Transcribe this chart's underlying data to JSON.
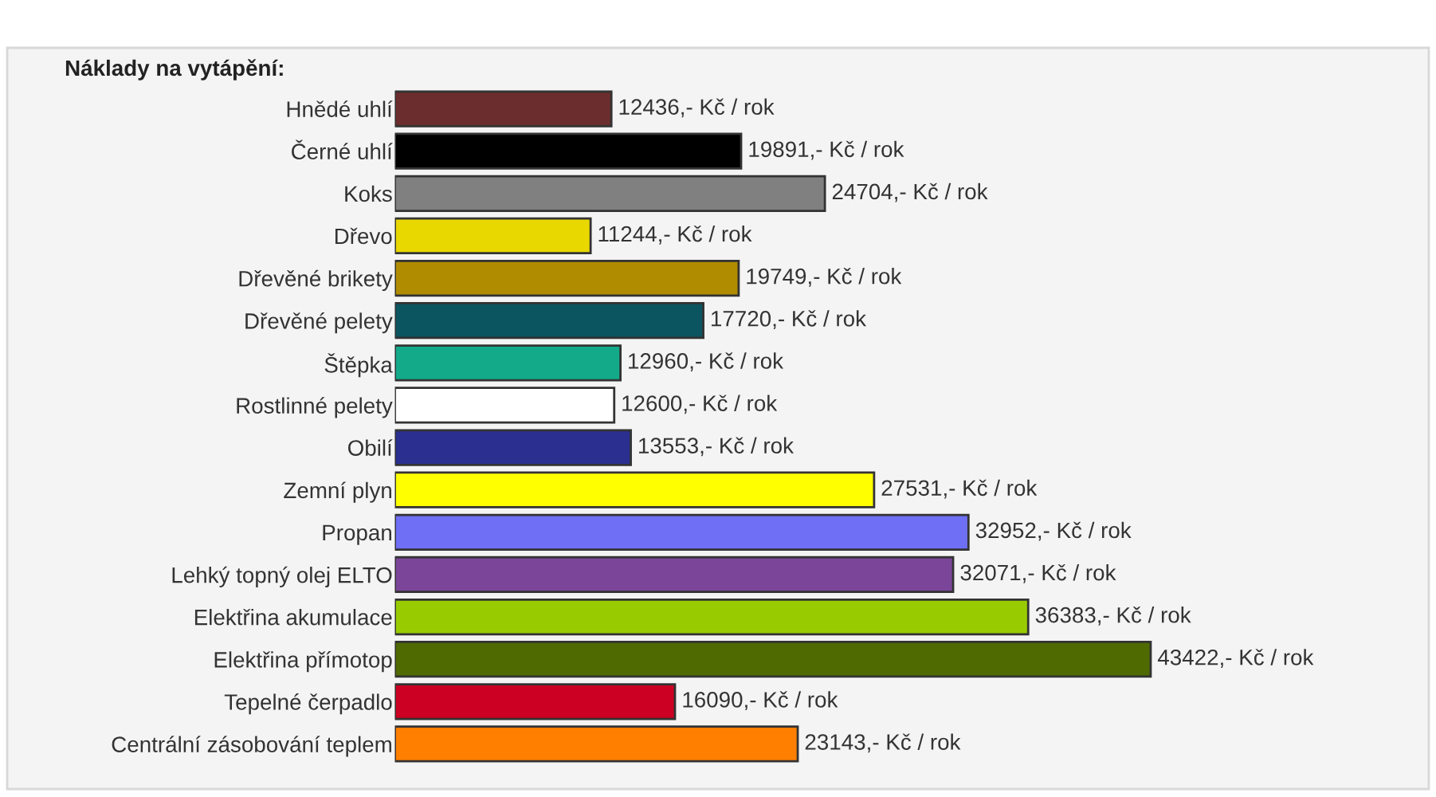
{
  "chart_data": {
    "type": "bar",
    "orientation": "horizontal",
    "title": "Náklady na vytápění:",
    "categories": [
      "Hnědé uhlí",
      "Černé uhlí",
      "Koks",
      "Dřevo",
      "Dřevěné brikety",
      "Dřevěné pelety",
      "Štěpka",
      "Rostlinné pelety",
      "Obilí",
      "Zemní plyn",
      "Propan",
      "Lehký topný olej ELTO",
      "Elektřina akumulace",
      "Elektřina přímotop",
      "Tepelné čerpadlo",
      "Centrální zásobování teplem"
    ],
    "values": [
      12436,
      19891,
      24704,
      11244,
      19749,
      17720,
      12960,
      12600,
      13553,
      27531,
      32952,
      32071,
      36383,
      43422,
      16090,
      23143
    ],
    "colors": [
      "#6b2d2d",
      "#000000",
      "#808080",
      "#e8d800",
      "#b08c00",
      "#0b5561",
      "#13aa8a",
      "#ffffff",
      "#2b2f8f",
      "#ffff00",
      "#6f6ff5",
      "#7b4699",
      "#99cc00",
      "#4f6a00",
      "#cc0022",
      "#ff7f00"
    ],
    "value_labels": [
      "12436,- Kč / rok",
      "19891,- Kč / rok",
      "24704,- Kč / rok",
      "11244,- Kč / rok",
      "19749,- Kč / rok",
      "17720,- Kč / rok",
      "12960,- Kč / rok",
      "12600,- Kč / rok",
      "13553,- Kč / rok",
      "27531,- Kč / rok",
      "32952,- Kč / rok",
      "32071,- Kč / rok",
      "36383,- Kč / rok",
      "43422,- Kč / rok",
      "16090,- Kč / rok",
      "23143,- Kč / rok"
    ],
    "grid": false,
    "legend": false
  }
}
